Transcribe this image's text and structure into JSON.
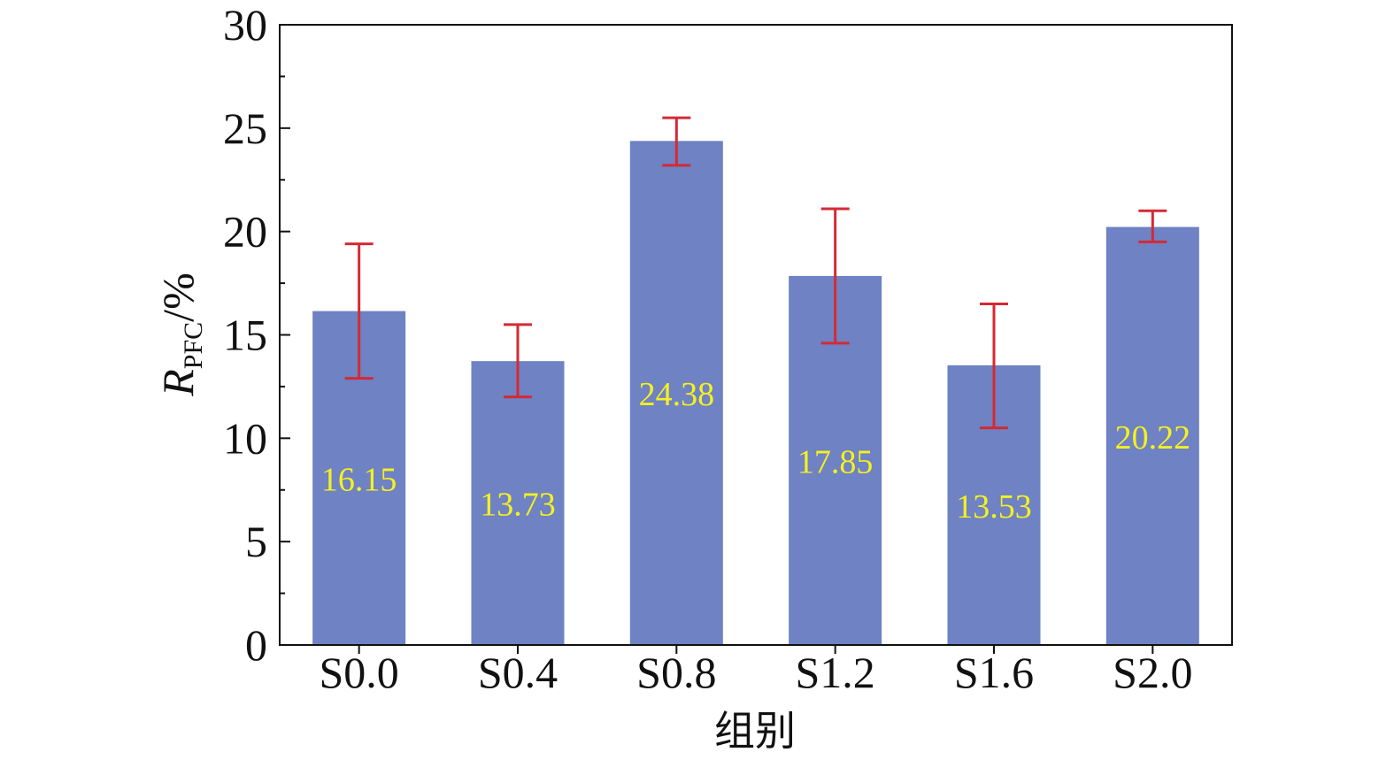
{
  "chart_data": {
    "type": "bar",
    "title": "",
    "xlabel": "组别",
    "ylabel": {
      "main": "R",
      "sub": "PFC",
      "unit": "/%"
    },
    "ylim": [
      0,
      30
    ],
    "yticks": [
      0,
      5,
      10,
      15,
      20,
      25,
      30
    ],
    "categories": [
      "S0.0",
      "S0.4",
      "S0.8",
      "S1.2",
      "S1.6",
      "S2.0"
    ],
    "values": [
      16.15,
      13.73,
      24.38,
      17.85,
      13.53,
      20.22
    ],
    "value_labels": [
      "16.15",
      "13.73",
      "24.38",
      "17.85",
      "13.53",
      "20.22"
    ],
    "error_bars": [
      {
        "low": 12.9,
        "high": 19.4
      },
      {
        "low": 12.0,
        "high": 15.5
      },
      {
        "low": 23.2,
        "high": 25.5
      },
      {
        "low": 14.6,
        "high": 21.1
      },
      {
        "low": 10.5,
        "high": 16.5
      },
      {
        "low": 19.5,
        "high": 21.0
      }
    ],
    "grid": false,
    "colors": {
      "bar": "#6e82c4",
      "error": "#d42a35",
      "label": "#f5f020",
      "axis": "#111111"
    }
  }
}
